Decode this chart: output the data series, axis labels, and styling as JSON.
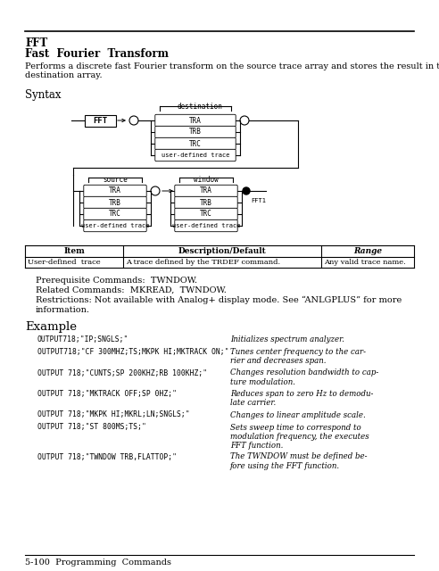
{
  "title_line1": "FFT",
  "title_line2": "Fast  Fourier  Transform",
  "description": "Performs a discrete fast Fourier transform on the source trace array and stores the result in the\ndestination array.",
  "syntax_label": "Syntax",
  "example_label": "Example",
  "table_headers": [
    "Item",
    "Description/Default",
    "Range"
  ],
  "table_row": [
    "User-defined  trace",
    "A trace defined by the TRDEF command.",
    "Any valid trace name."
  ],
  "prereq": "Prerequisite Commands:  TWNDOW.",
  "related": "Related Commands:  MKREAD,  TWNDOW.",
  "restrictions": "Restrictions: Not available with Analog+ display mode. See “ANLGPLUS” for more\ninformation.",
  "code_lines": [
    [
      "OUTPUT718;\"IP;SNGLS;\"",
      "Initializes spectrum analyzer."
    ],
    [
      "OUTPUT718;\"CF 300MHZ;TS;MKPK HI;MKTRACK ON;\"",
      "Tunes center frequency to the car-\nrier and decreases span."
    ],
    [
      "OUTPUT 718;\"CUNTS;SP 200KHZ;RB 100KHZ;\"",
      "Changes resolution bandwidth to cap-\nture modulation."
    ],
    [
      "OUTPUT 718;\"MKTRACK OFF;SP 0HZ;\"",
      "Reduces span to zero Hz to demodu-\nlate carrier."
    ],
    [
      "OUTPUT 718;\"MKPK HI;MKRL;LN;SNGLS;\"",
      "Changes to linear amplitude scale."
    ],
    [
      "OUTPUT 718;\"ST 800MS;TS;\"",
      "Sets sweep time to correspond to\nmodulation frequency, the executes\nFFT function."
    ],
    [
      "OUTPUT 718;\"TWNDOW TRB,FLATTOP;\"",
      "The TWNDOW must be defined be-\nfore using the FFT function."
    ]
  ],
  "footer": "5-100  Programming  Commands",
  "bg_color": "#ffffff"
}
